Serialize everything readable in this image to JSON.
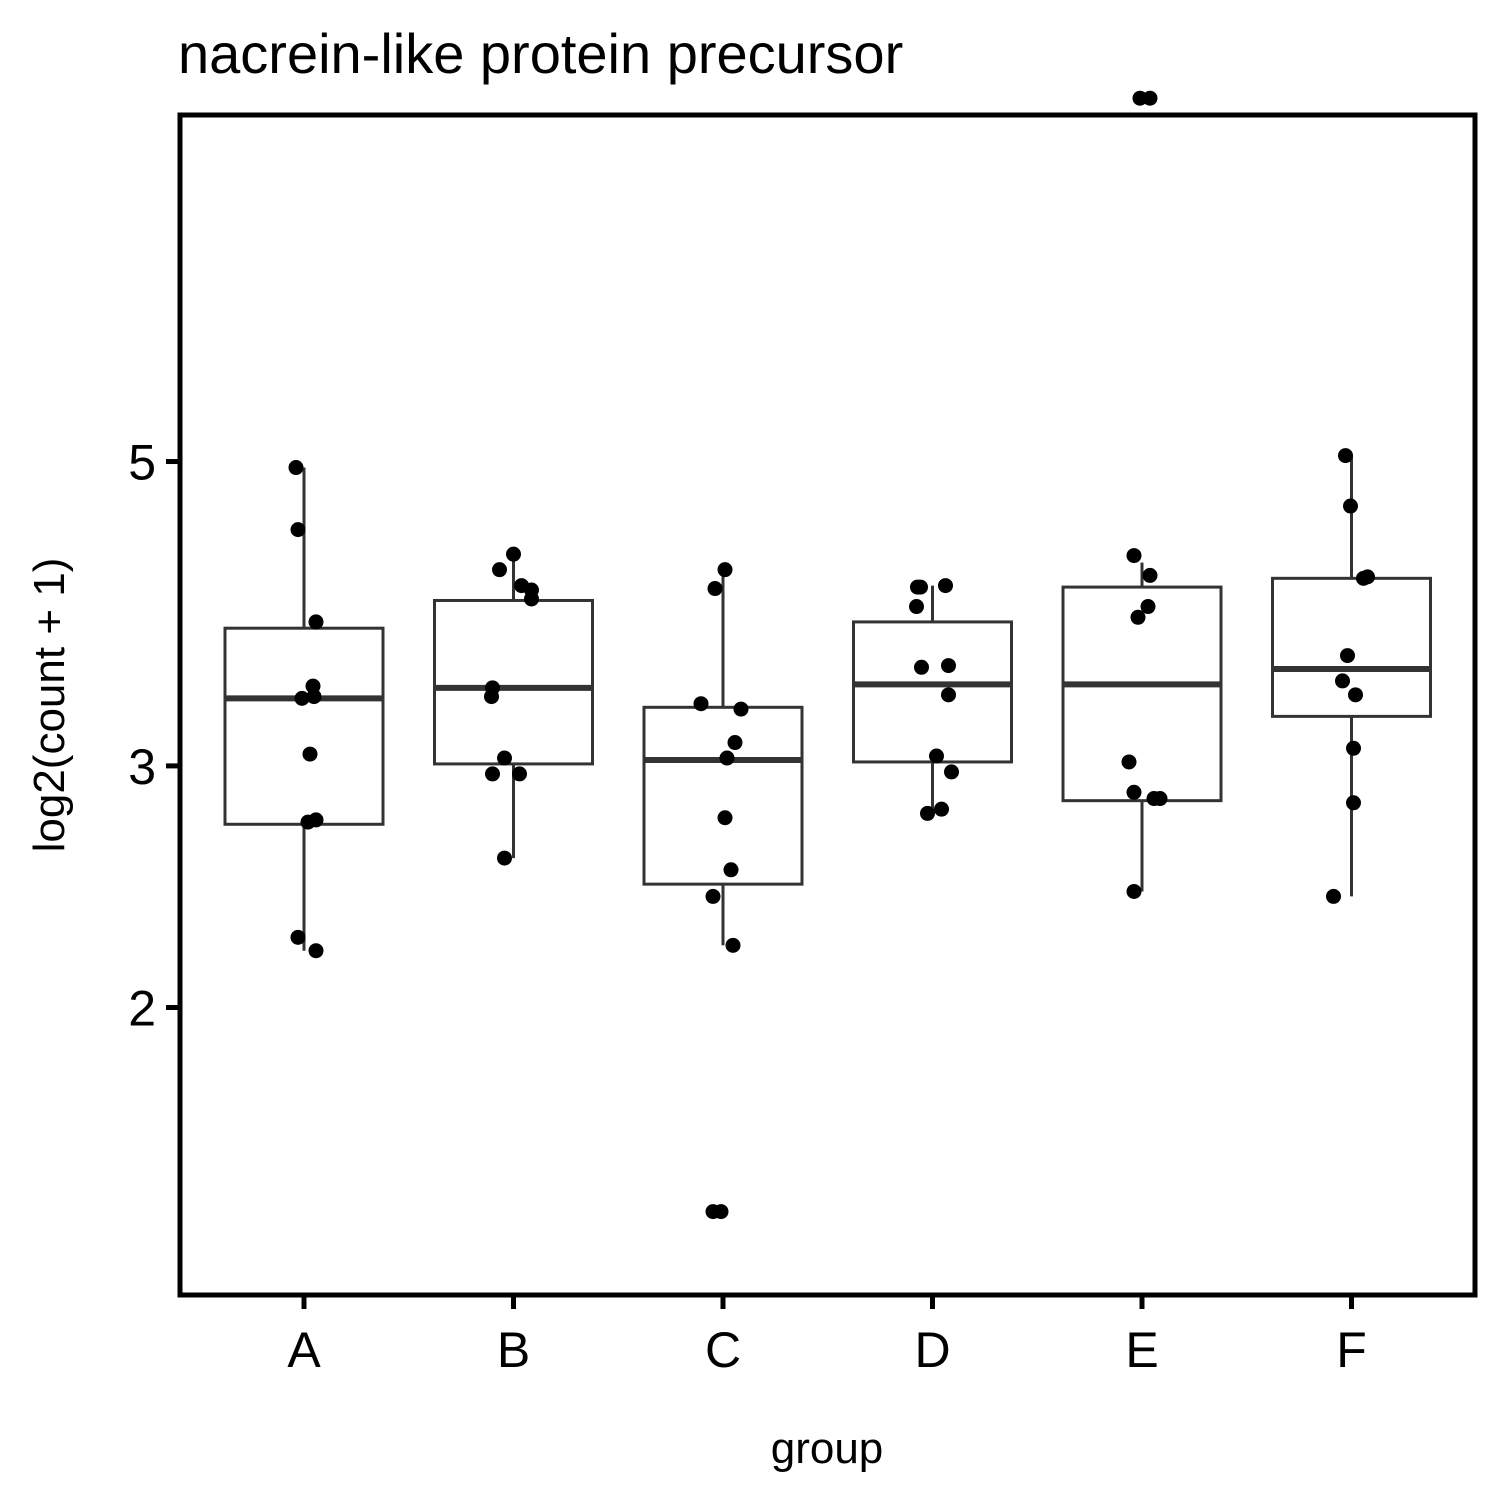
{
  "chart_data": {
    "type": "box",
    "title": "nacrein-like protein precursor",
    "xlabel": "group",
    "ylabel": "log2(count + 1)",
    "y_scale": "log",
    "ylim": [
      1.3,
      10.2
    ],
    "y_ticks": [
      2,
      3,
      5
    ],
    "y_tick_labels": [
      "2",
      "3",
      "5"
    ],
    "categories": [
      "A",
      "B",
      "C",
      "D",
      "E",
      "F"
    ],
    "grid": false,
    "legend": "none",
    "boxes": [
      {
        "group": "A",
        "whisker_low": 2.2,
        "q1": 2.72,
        "median": 3.36,
        "q3": 3.78,
        "whisker_high": 4.95
      },
      {
        "group": "B",
        "whisker_low": 2.57,
        "q1": 3.01,
        "median": 3.42,
        "q3": 3.96,
        "whisker_high": 4.28
      },
      {
        "group": "C",
        "whisker_low": 2.22,
        "q1": 2.46,
        "median": 3.03,
        "q3": 3.31,
        "whisker_high": 4.17
      },
      {
        "group": "D",
        "whisker_low": 2.77,
        "q1": 3.02,
        "median": 3.44,
        "q3": 3.82,
        "whisker_high": 4.06
      },
      {
        "group": "E",
        "whisker_low": 2.43,
        "q1": 2.83,
        "median": 3.44,
        "q3": 4.05,
        "whisker_high": 4.22
      },
      {
        "group": "F",
        "whisker_low": 2.41,
        "q1": 3.26,
        "median": 3.53,
        "q3": 4.11,
        "whisker_high": 5.05
      }
    ],
    "points": [
      {
        "group": "A",
        "values": [
          4.95,
          4.46,
          3.82,
          3.37,
          3.36,
          3.43,
          3.06,
          2.74,
          2.73,
          2.25,
          2.2
        ]
      },
      {
        "group": "B",
        "values": [
          4.28,
          4.17,
          4.06,
          4.03,
          3.97,
          3.42,
          3.37,
          3.04,
          2.96,
          2.96,
          2.57
        ]
      },
      {
        "group": "C",
        "values": [
          4.17,
          4.04,
          3.33,
          3.3,
          3.12,
          3.04,
          2.75,
          2.52,
          2.41,
          2.22,
          1.42,
          1.42
        ]
      },
      {
        "group": "D",
        "values": [
          4.05,
          4.05,
          4.06,
          3.92,
          3.54,
          3.55,
          3.38,
          3.05,
          2.97,
          2.79,
          2.77
        ]
      },
      {
        "group": "E",
        "values": [
          9.2,
          9.2,
          4.27,
          4.13,
          3.92,
          3.85,
          3.02,
          2.87,
          2.84,
          2.84,
          2.43
        ]
      },
      {
        "group": "F",
        "values": [
          5.05,
          4.64,
          4.11,
          4.12,
          3.61,
          3.46,
          3.38,
          3.09,
          2.82,
          2.41
        ]
      }
    ],
    "point_offsets": [
      [
        -8,
        -6,
        12,
        10,
        -2,
        9,
        6,
        12,
        4,
        -6,
        12
      ],
      [
        0,
        -14,
        8,
        18,
        18,
        -21,
        -22,
        -9,
        -21,
        6,
        -9
      ],
      [
        2,
        -8,
        -22,
        18,
        12,
        4,
        2,
        8,
        -10,
        10,
        -10,
        -2
      ],
      [
        -12,
        -15,
        13,
        -16,
        -11,
        16,
        16,
        4,
        19,
        9,
        -5
      ],
      [
        -2,
        8,
        -8,
        8,
        6,
        -4,
        -13,
        -8,
        12,
        18,
        -8
      ],
      [
        -6,
        -1,
        12,
        16,
        -4,
        -9,
        4,
        2,
        2,
        -18
      ]
    ],
    "colors": {
      "box_stroke": "#333333",
      "point": "#000000",
      "panel_border": "#000000",
      "background": "#ffffff"
    }
  }
}
